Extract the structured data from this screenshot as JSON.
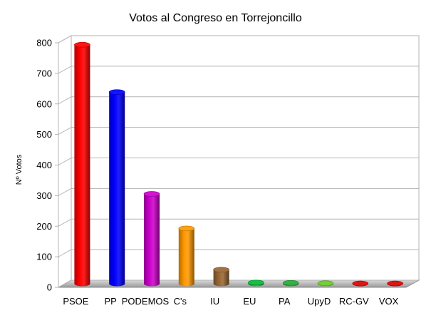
{
  "chart_data": {
    "type": "bar",
    "title": "Votos al Congreso en Torrejoncillo",
    "xlabel": "",
    "ylabel": "Nº Votos",
    "ylim": [
      0,
      800
    ],
    "yticks": [
      0,
      100,
      200,
      300,
      400,
      500,
      600,
      700,
      800
    ],
    "grid": true,
    "legend": "none",
    "categories": [
      "PSOE",
      "PP",
      "PODEMOS",
      "C's",
      "IU",
      "EU",
      "PA",
      "UpyD",
      "RC-GV",
      "VOX"
    ],
    "values": [
      782,
      627,
      294,
      181,
      46,
      4,
      3,
      2,
      1,
      1
    ],
    "colors": [
      "#ff0000",
      "#0000ff",
      "#cc00cc",
      "#ff9900",
      "#996633",
      "#00bb33",
      "#22aa33",
      "#66cc22",
      "#dd0000",
      "#dd0000"
    ]
  }
}
